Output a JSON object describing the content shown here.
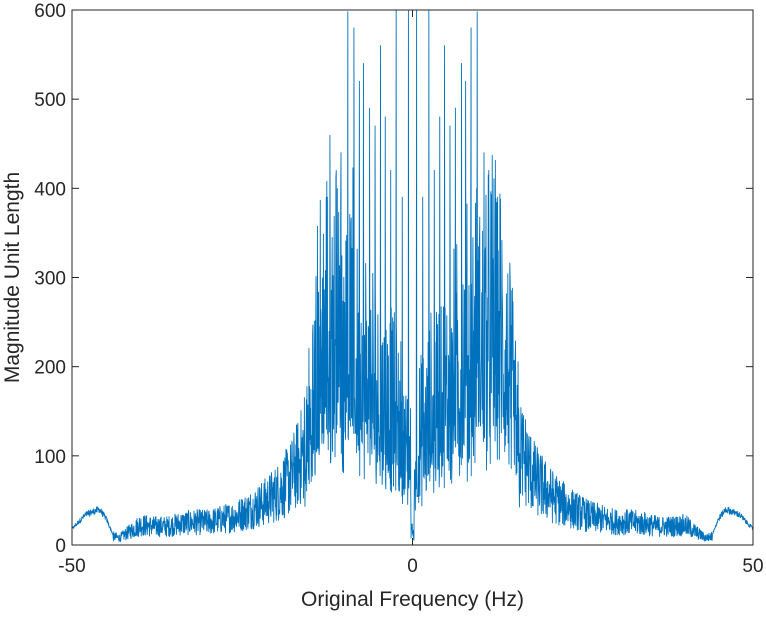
{
  "chart_data": {
    "type": "line",
    "title": "",
    "xlabel": "Original Frequency (Hz)",
    "ylabel": "Magnitude Unit Length",
    "xlim": [
      -50,
      50
    ],
    "ylim": [
      0,
      600
    ],
    "x_ticks": [
      -50,
      0,
      50
    ],
    "y_ticks": [
      0,
      100,
      200,
      300,
      400,
      500,
      600
    ],
    "x_tick_labels": [
      "-50",
      "0",
      "50"
    ],
    "y_tick_labels": [
      "0",
      "100",
      "200",
      "300",
      "400",
      "500",
      "600"
    ],
    "grid": false,
    "box": true,
    "line_color": "#0072BD",
    "series": [
      {
        "x": [
          -50,
          -48,
          -46,
          -45,
          -44,
          -43,
          -42,
          -41,
          -40,
          -38,
          -36,
          -34,
          -32,
          -30,
          -28,
          -26,
          -24,
          -22,
          -20,
          -18,
          -16,
          -15,
          -14,
          -13,
          -12,
          -11,
          -10,
          -9,
          -8.5,
          -8,
          -7,
          -6,
          -5,
          -4,
          -3,
          -2,
          -1,
          0,
          1,
          2,
          3,
          4,
          5,
          6,
          7,
          8,
          8.5,
          9,
          10,
          11,
          12,
          13,
          14,
          15,
          16,
          18,
          20,
          22,
          24,
          26,
          28,
          30,
          32,
          34,
          36,
          38,
          40,
          41,
          42,
          43,
          44,
          45,
          46,
          48,
          50
        ],
        "envelope": [
          18,
          34,
          40,
          30,
          12,
          10,
          16,
          22,
          28,
          26,
          26,
          30,
          32,
          32,
          36,
          40,
          48,
          58,
          72,
          92,
          130,
          190,
          270,
          320,
          340,
          330,
          310,
          300,
          290,
          280,
          260,
          240,
          230,
          220,
          200,
          180,
          150,
          120,
          150,
          180,
          200,
          220,
          230,
          240,
          260,
          280,
          290,
          300,
          310,
          330,
          340,
          320,
          270,
          190,
          130,
          92,
          72,
          58,
          48,
          40,
          36,
          32,
          32,
          30,
          26,
          26,
          28,
          22,
          16,
          10,
          12,
          30,
          40,
          34,
          18
        ],
        "peaks": [
          {
            "x": -9.5,
            "y": 598
          },
          {
            "x": -8.6,
            "y": 580
          },
          {
            "x": -7.8,
            "y": 520
          },
          {
            "x": -7.2,
            "y": 540
          },
          {
            "x": -6.3,
            "y": 490
          },
          {
            "x": -5.5,
            "y": 470
          },
          {
            "x": -4.7,
            "y": 560
          },
          {
            "x": -4.0,
            "y": 480
          },
          {
            "x": -3.2,
            "y": 420
          },
          {
            "x": -2.4,
            "y": 610
          },
          {
            "x": -1.5,
            "y": 390
          },
          {
            "x": -0.6,
            "y": 600
          },
          {
            "x": 0.6,
            "y": 600
          },
          {
            "x": 1.5,
            "y": 390
          },
          {
            "x": 2.4,
            "y": 610
          },
          {
            "x": 3.2,
            "y": 420
          },
          {
            "x": 4.0,
            "y": 480
          },
          {
            "x": 4.7,
            "y": 560
          },
          {
            "x": 5.5,
            "y": 470
          },
          {
            "x": 6.3,
            "y": 490
          },
          {
            "x": 7.2,
            "y": 540
          },
          {
            "x": 7.8,
            "y": 520
          },
          {
            "x": 8.6,
            "y": 580
          },
          {
            "x": 9.5,
            "y": 598
          },
          {
            "x": -12.5,
            "y": 390
          },
          {
            "x": -11.2,
            "y": 420
          },
          {
            "x": -10.5,
            "y": 440
          },
          {
            "x": 10.5,
            "y": 440
          },
          {
            "x": 11.2,
            "y": 420
          },
          {
            "x": 12.5,
            "y": 390
          }
        ]
      }
    ]
  }
}
